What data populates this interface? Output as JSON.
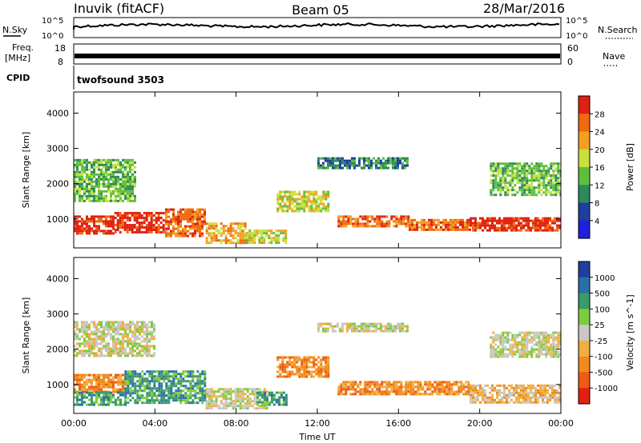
{
  "header": {
    "station": "Inuvik (fitACF)",
    "beam": "Beam 05",
    "date": "28/Mar/2016"
  },
  "top_panels": {
    "nsky_label": "N.Sky",
    "nsky_ticks": [
      "10^5",
      "10^0"
    ],
    "nsearch_label": "N.Search",
    "nsearch_ticks": [
      "10^5",
      "10^0"
    ],
    "freq_label": "Freq.",
    "freq_unit": "[MHz]",
    "freq_ticks": [
      "18",
      "8"
    ],
    "nave_label": "Nave",
    "nave_ticks": [
      "60",
      "0"
    ],
    "cpid_label": "CPID",
    "cpid_value": "twofsound 3503"
  },
  "colors": {
    "power": [
      "#1f1fe0",
      "#1f3fa0",
      "#2d8a5a",
      "#5fbf3c",
      "#c8e040",
      "#f2a020",
      "#ef6a10",
      "#e02010"
    ],
    "velocity": [
      "#e62010",
      "#ef5a14",
      "#f08a1c",
      "#f0b040",
      "#c8c8c8",
      "#7ccc40",
      "#3a9a6a",
      "#2a70a8",
      "#1f3fa0"
    ]
  },
  "chart_data": [
    {
      "type": "heatmap",
      "title": "Power",
      "xlabel": "Time UT",
      "ylabel": "Slant Range [km]",
      "colorbar_label": "Power [dB]",
      "x_ticks": [
        "00:00",
        "04:00",
        "08:00",
        "12:00",
        "16:00",
        "20:00",
        "00:00"
      ],
      "y_ticks": [
        1000,
        2000,
        3000,
        4000
      ],
      "ylim": [
        180,
        4600
      ],
      "xlim_hours": [
        0,
        24
      ],
      "colorbar_ticks": [
        "28",
        "24",
        "20",
        "16",
        "12",
        "8",
        "4"
      ],
      "bands": [
        {
          "h0": 0.0,
          "h1": 2.0,
          "r0": 600,
          "r1": 1100,
          "level": 7
        },
        {
          "h0": 2.0,
          "h1": 4.5,
          "r0": 600,
          "r1": 1200,
          "level": 7
        },
        {
          "h0": 4.5,
          "h1": 6.5,
          "r0": 500,
          "r1": 1300,
          "level": 6
        },
        {
          "h0": 6.5,
          "h1": 8.5,
          "r0": 350,
          "r1": 900,
          "level": 5
        },
        {
          "h0": 8.5,
          "h1": 10.5,
          "r0": 300,
          "r1": 700,
          "level": 4
        },
        {
          "h0": 10.0,
          "h1": 12.5,
          "r0": 1200,
          "r1": 1800,
          "level": 4
        },
        {
          "h0": 13.0,
          "h1": 16.5,
          "r0": 800,
          "r1": 1100,
          "level": 6
        },
        {
          "h0": 16.5,
          "h1": 19.5,
          "r0": 700,
          "r1": 1000,
          "level": 6
        },
        {
          "h0": 19.5,
          "h1": 24.0,
          "r0": 650,
          "r1": 1050,
          "level": 7
        },
        {
          "h0": 0.0,
          "h1": 3.0,
          "r0": 1500,
          "r1": 2700,
          "level": 3
        },
        {
          "h0": 12.0,
          "h1": 16.5,
          "r0": 2450,
          "r1": 2750,
          "level": 2
        },
        {
          "h0": 20.5,
          "h1": 24.0,
          "r0": 1700,
          "r1": 2600,
          "level": 3
        }
      ]
    },
    {
      "type": "heatmap",
      "title": "Velocity",
      "xlabel": "Time UT",
      "ylabel": "Slant Range [km]",
      "colorbar_label": "Velocity [m s^-1]",
      "x_ticks": [
        "00:00",
        "04:00",
        "08:00",
        "12:00",
        "16:00",
        "20:00",
        "00:00"
      ],
      "y_ticks": [
        1000,
        2000,
        3000,
        4000
      ],
      "ylim": [
        180,
        4600
      ],
      "xlim_hours": [
        0,
        24
      ],
      "colorbar_ticks": [
        "1000",
        "500",
        "100",
        "25",
        "-25",
        "-100",
        "-500",
        "-1000"
      ],
      "bands": [
        {
          "h0": 0.0,
          "h1": 2.5,
          "r0": 800,
          "r1": 1300,
          "level": 2
        },
        {
          "h0": 0.0,
          "h1": 2.5,
          "r0": 400,
          "r1": 800,
          "level": 6
        },
        {
          "h0": 2.5,
          "h1": 6.5,
          "r0": 500,
          "r1": 1400,
          "level": 6
        },
        {
          "h0": 6.5,
          "h1": 9.5,
          "r0": 350,
          "r1": 900,
          "level": 4
        },
        {
          "h0": 9.0,
          "h1": 10.5,
          "r0": 400,
          "r1": 800,
          "level": 6
        },
        {
          "h0": 10.0,
          "h1": 12.5,
          "r0": 1200,
          "r1": 1800,
          "level": 2
        },
        {
          "h0": 13.0,
          "h1": 19.5,
          "r0": 700,
          "r1": 1100,
          "level": 2
        },
        {
          "h0": 19.5,
          "h1": 24.0,
          "r0": 500,
          "r1": 1000,
          "level": 3
        },
        {
          "h0": 0.0,
          "h1": 4.0,
          "r0": 1800,
          "r1": 2800,
          "level": 4
        },
        {
          "h0": 12.0,
          "h1": 16.5,
          "r0": 2500,
          "r1": 2750,
          "level": 4
        },
        {
          "h0": 20.5,
          "h1": 24.0,
          "r0": 1800,
          "r1": 2500,
          "level": 4
        }
      ]
    }
  ]
}
